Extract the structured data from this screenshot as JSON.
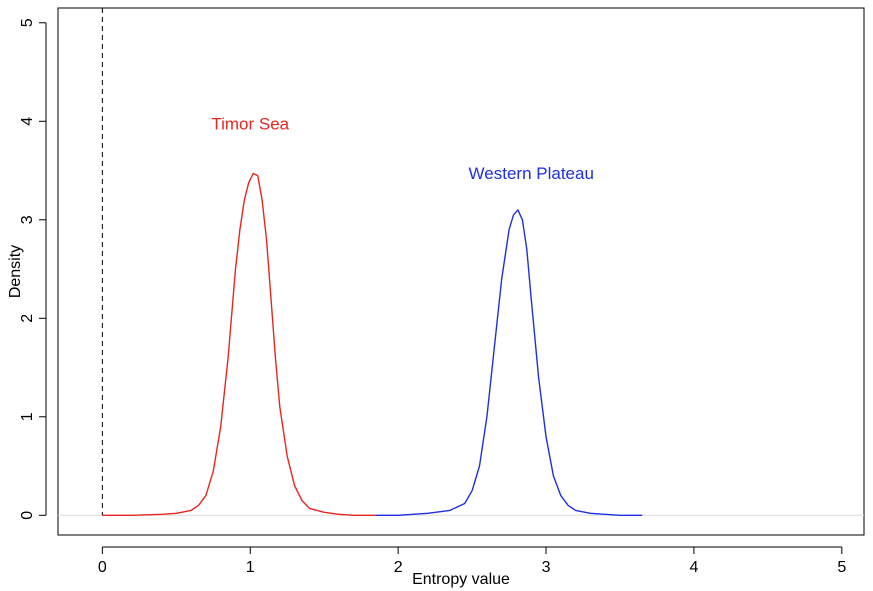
{
  "chart_data": {
    "type": "line",
    "title": "",
    "xlabel": "Entropy value",
    "ylabel": "Density",
    "xlim": [
      -0.3,
      5.15
    ],
    "ylim": [
      -0.2,
      5.15
    ],
    "xticks": [
      0,
      1,
      2,
      3,
      4,
      5
    ],
    "yticks": [
      0,
      1,
      2,
      3,
      4,
      5
    ],
    "grid": false,
    "reference_line": {
      "x": 0,
      "style": "dashed",
      "color": "#000000"
    },
    "series": [
      {
        "name": "Timor Sea",
        "color": "#e8261f",
        "x": [
          0.0,
          0.2,
          0.4,
          0.5,
          0.6,
          0.65,
          0.7,
          0.75,
          0.8,
          0.85,
          0.9,
          0.93,
          0.96,
          0.99,
          1.02,
          1.05,
          1.08,
          1.11,
          1.14,
          1.17,
          1.2,
          1.25,
          1.3,
          1.35,
          1.4,
          1.5,
          1.6,
          1.7,
          1.8,
          1.85
        ],
        "y": [
          0.0,
          0.0,
          0.01,
          0.02,
          0.05,
          0.1,
          0.2,
          0.45,
          0.9,
          1.6,
          2.5,
          2.9,
          3.2,
          3.38,
          3.47,
          3.45,
          3.2,
          2.8,
          2.2,
          1.6,
          1.1,
          0.6,
          0.3,
          0.15,
          0.07,
          0.03,
          0.01,
          0.0,
          0.0,
          0.0
        ]
      },
      {
        "name": "Western Plateau",
        "color": "#1f2fe0",
        "x": [
          1.85,
          2.0,
          2.2,
          2.35,
          2.45,
          2.5,
          2.55,
          2.6,
          2.65,
          2.7,
          2.75,
          2.78,
          2.81,
          2.84,
          2.87,
          2.9,
          2.95,
          3.0,
          3.05,
          3.1,
          3.15,
          3.2,
          3.3,
          3.4,
          3.5,
          3.65
        ],
        "y": [
          0.0,
          0.0,
          0.02,
          0.05,
          0.12,
          0.25,
          0.5,
          1.0,
          1.7,
          2.4,
          2.9,
          3.05,
          3.1,
          3.0,
          2.7,
          2.2,
          1.4,
          0.8,
          0.4,
          0.2,
          0.1,
          0.05,
          0.02,
          0.01,
          0.0,
          0.0
        ]
      }
    ],
    "annotations": [
      {
        "text": "Timor Sea",
        "color": "#e8261f",
        "x": 1.0,
        "y": 3.96
      },
      {
        "text": "Western Plateau",
        "color": "#1f2fe0",
        "x": 2.9,
        "y": 3.46
      }
    ]
  }
}
